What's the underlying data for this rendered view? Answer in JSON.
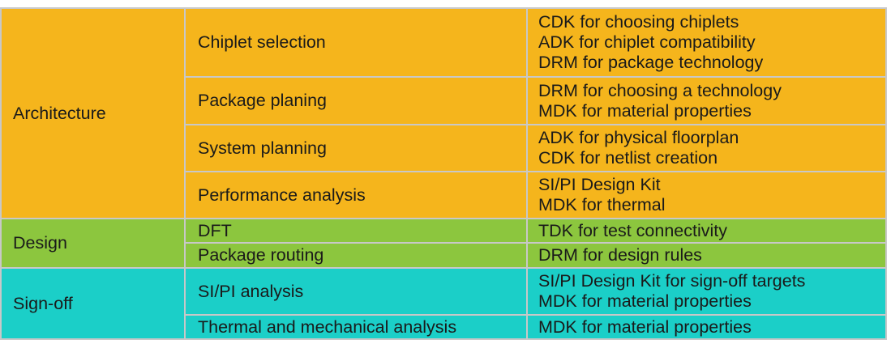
{
  "groups": [
    {
      "name": "Architecture",
      "color": "#f5b51c",
      "rows": [
        {
          "step": "Chiplet selection",
          "kits": [
            "CDK for choosing chiplets",
            "ADK for chiplet compatibility",
            "DRM for package technology"
          ]
        },
        {
          "step": "Package planing",
          "kits": [
            "DRM for choosing a technology",
            "MDK for  material properties"
          ]
        },
        {
          "step": "System planning",
          "kits": [
            "ADK for physical floorplan",
            "CDK for netlist creation"
          ]
        },
        {
          "step": "Performance analysis",
          "kits": [
            "SI/PI Design Kit",
            "MDK for thermal"
          ]
        }
      ]
    },
    {
      "name": "Design",
      "color": "#8cc63e",
      "rows": [
        {
          "step": "DFT",
          "kits": [
            "TDK for test connectivity"
          ]
        },
        {
          "step": "Package routing",
          "kits": [
            "DRM for design rules"
          ]
        }
      ]
    },
    {
      "name": "Sign-off",
      "color": "#1bcfc8",
      "rows": [
        {
          "step": "SI/PI analysis",
          "kits": [
            "SI/PI Design Kit for sign-off targets",
            "MDK for material properties"
          ]
        },
        {
          "step": "Thermal and mechanical analysis",
          "kits": [
            "MDK for material properties"
          ]
        }
      ]
    }
  ]
}
